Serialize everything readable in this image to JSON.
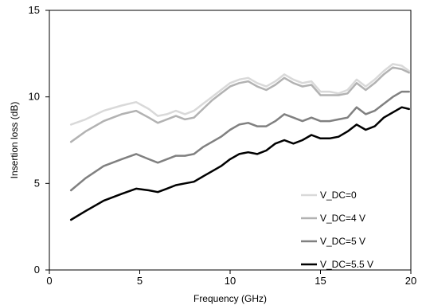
{
  "chart_data": {
    "type": "line",
    "title": "",
    "xlabel": "Frequency (GHz)",
    "ylabel": "Insertion loss (dB)",
    "xlim": [
      0,
      20
    ],
    "ylim": [
      0,
      15
    ],
    "xticks": [
      0,
      5,
      10,
      15,
      20
    ],
    "yticks": [
      0,
      5,
      10,
      15
    ],
    "grid": false,
    "legend_position": "lower-right",
    "series": [
      {
        "name": "V_DC=0",
        "color": "#d9d9d9",
        "x": [
          1.2,
          2,
          3,
          4,
          4.8,
          5.5,
          6,
          6.5,
          7,
          7.5,
          8,
          8.5,
          9,
          9.5,
          10,
          10.5,
          11,
          11.5,
          12,
          12.5,
          13,
          13.5,
          14,
          14.5,
          15,
          15.5,
          16,
          16.5,
          17,
          17.5,
          18,
          18.5,
          19,
          19.5,
          19.9
        ],
        "y": [
          8.4,
          8.7,
          9.2,
          9.5,
          9.7,
          9.3,
          8.9,
          9.0,
          9.2,
          9.0,
          9.2,
          9.6,
          10.0,
          10.4,
          10.8,
          11.0,
          11.1,
          10.8,
          10.6,
          10.9,
          11.3,
          11.0,
          10.8,
          10.9,
          10.3,
          10.3,
          10.2,
          10.4,
          11.0,
          10.6,
          11.0,
          11.5,
          11.9,
          11.8,
          11.5
        ]
      },
      {
        "name": "V_DC=4 V",
        "color": "#b2b2b2",
        "x": [
          1.2,
          2,
          3,
          4,
          4.8,
          5.5,
          6,
          6.5,
          7,
          7.5,
          8,
          8.5,
          9,
          9.5,
          10,
          10.5,
          11,
          11.5,
          12,
          12.5,
          13,
          13.5,
          14,
          14.5,
          15,
          15.5,
          16,
          16.5,
          17,
          17.5,
          18,
          18.5,
          19,
          19.5,
          19.9
        ],
        "y": [
          7.4,
          8.0,
          8.6,
          9.0,
          9.2,
          8.8,
          8.5,
          8.7,
          8.9,
          8.7,
          8.8,
          9.3,
          9.8,
          10.2,
          10.6,
          10.8,
          10.9,
          10.6,
          10.4,
          10.7,
          11.1,
          10.8,
          10.6,
          10.7,
          10.1,
          10.1,
          10.1,
          10.2,
          10.8,
          10.4,
          10.8,
          11.3,
          11.7,
          11.6,
          11.4
        ]
      },
      {
        "name": "V_DC=5 V",
        "color": "#808080",
        "x": [
          1.2,
          2,
          3,
          4,
          4.8,
          5.5,
          6,
          6.5,
          7,
          7.5,
          8,
          8.5,
          9,
          9.5,
          10,
          10.5,
          11,
          11.5,
          12,
          12.5,
          13,
          13.5,
          14,
          14.5,
          15,
          15.5,
          16,
          16.5,
          17,
          17.5,
          18,
          18.5,
          19,
          19.5,
          19.9
        ],
        "y": [
          4.6,
          5.3,
          6.0,
          6.4,
          6.7,
          6.4,
          6.2,
          6.4,
          6.6,
          6.6,
          6.7,
          7.1,
          7.4,
          7.7,
          8.1,
          8.4,
          8.5,
          8.3,
          8.3,
          8.6,
          9.0,
          8.8,
          8.6,
          8.8,
          8.6,
          8.6,
          8.7,
          8.8,
          9.4,
          9.0,
          9.2,
          9.6,
          10.0,
          10.3,
          10.3
        ]
      },
      {
        "name": "V_DC=5.5 V",
        "color": "#000000",
        "x": [
          1.2,
          2,
          3,
          4,
          4.8,
          5.5,
          6,
          6.5,
          7,
          7.5,
          8,
          8.5,
          9,
          9.5,
          10,
          10.5,
          11,
          11.5,
          12,
          12.5,
          13,
          13.5,
          14,
          14.5,
          15,
          15.5,
          16,
          16.5,
          17,
          17.5,
          18,
          18.5,
          19,
          19.5,
          19.9
        ],
        "y": [
          2.9,
          3.4,
          4.0,
          4.4,
          4.7,
          4.6,
          4.5,
          4.7,
          4.9,
          5.0,
          5.1,
          5.4,
          5.7,
          6.0,
          6.4,
          6.7,
          6.8,
          6.7,
          6.9,
          7.3,
          7.5,
          7.3,
          7.5,
          7.8,
          7.6,
          7.6,
          7.7,
          8.0,
          8.4,
          8.1,
          8.3,
          8.8,
          9.1,
          9.4,
          9.3
        ]
      }
    ]
  }
}
